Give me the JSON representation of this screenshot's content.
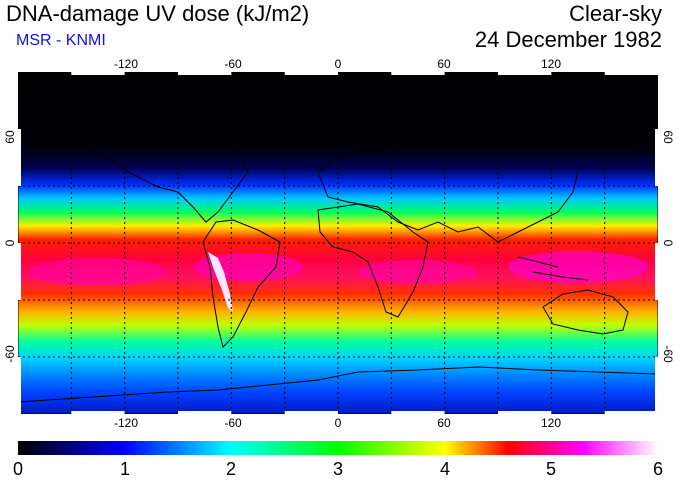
{
  "title": "DNA-damage UV dose (kJ/m2)",
  "subtitle": "MSR - KNMI",
  "sky_condition": "Clear-sky",
  "date": "24 December 1982",
  "map": {
    "projection": "equirectangular",
    "lon_range": [
      -180,
      180
    ],
    "lat_range": [
      -90,
      90
    ],
    "grid_lons": [
      -150,
      -120,
      -90,
      -60,
      -30,
      0,
      30,
      60,
      90,
      120,
      150
    ],
    "grid_lats": [
      -60,
      -30,
      0,
      30,
      60
    ],
    "lon_tick_labels": [
      "-120",
      "-60",
      "0",
      "60",
      "120"
    ],
    "lat_tick_labels_left": [
      "60",
      "0",
      "-60"
    ],
    "lat_tick_labels_right": [
      "60",
      "0",
      "-60"
    ]
  },
  "colorbar": {
    "min": 0,
    "max": 6,
    "labels": [
      "0",
      "1",
      "2",
      "3",
      "4",
      "5",
      "6"
    ],
    "colors": [
      "#000000",
      "#0000ff",
      "#00ffff",
      "#00ff00",
      "#ffff00",
      "#ff0000",
      "#ff00ff",
      "#ffffff"
    ]
  },
  "colors": {
    "subtitle": "#1010e0",
    "land_outline": "#000000",
    "grid": "#000000"
  }
}
